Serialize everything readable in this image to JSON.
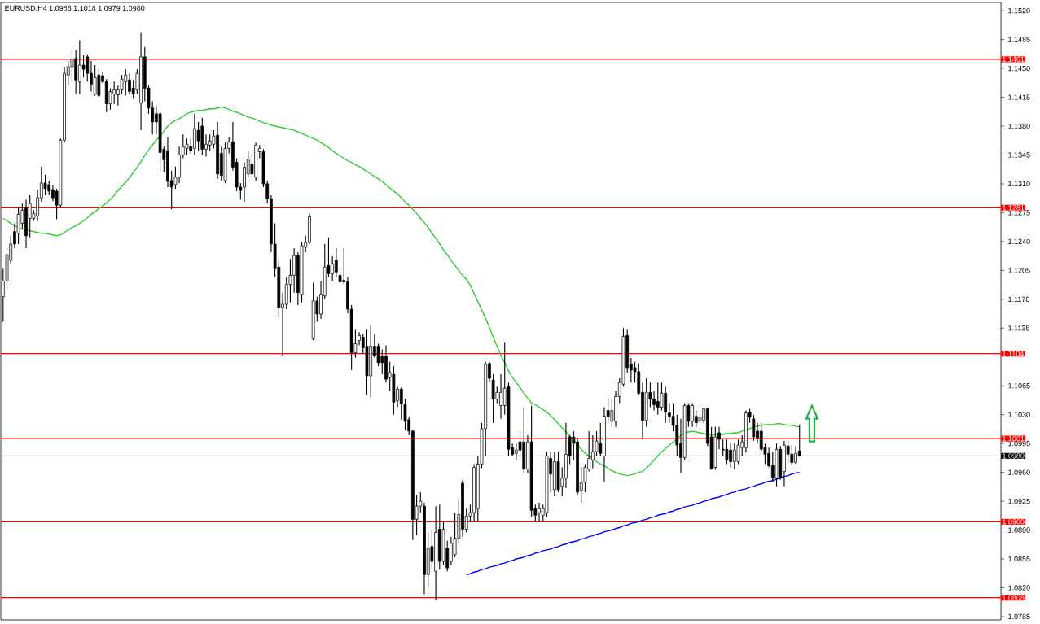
{
  "chart_data": {
    "type": "candlestick",
    "title": "EURUSD,H4 1.0986 1.1018 1.0979 1.0980",
    "categories": [
      null,
      null,
      null,
      null,
      null,
      null,
      null,
      null,
      null,
      null,
      null,
      null,
      null,
      null,
      null,
      null,
      null,
      null,
      null,
      null,
      null,
      null,
      null,
      null,
      null,
      null,
      null,
      null,
      null,
      null,
      null,
      null,
      null,
      null,
      null,
      null,
      null,
      null,
      null,
      null,
      null,
      null,
      null,
      null,
      null,
      null,
      null,
      null,
      null,
      null,
      null,
      null,
      null,
      null,
      null,
      null,
      null,
      null,
      null,
      null,
      null,
      null,
      null,
      null,
      null,
      null,
      null,
      null,
      null,
      null,
      null,
      null,
      null,
      null,
      null,
      null,
      null,
      null,
      null,
      null,
      null,
      null,
      null,
      null,
      null,
      null,
      null,
      null,
      null,
      null,
      null,
      null,
      null,
      null,
      null,
      null,
      null,
      null,
      null,
      null,
      null,
      null,
      null,
      null,
      null,
      null,
      null,
      null,
      null,
      null,
      null,
      null,
      null,
      null,
      null,
      null,
      null,
      null,
      null,
      null,
      null,
      null,
      null,
      null,
      null,
      null,
      null,
      null,
      null,
      null,
      null,
      null,
      null,
      null,
      null,
      null,
      null,
      null,
      null,
      null,
      null,
      null,
      null,
      null,
      null,
      null,
      null,
      null,
      null,
      null,
      null,
      null,
      null,
      null,
      null,
      null,
      null,
      null,
      null,
      null,
      null,
      null,
      null,
      null,
      null,
      null,
      null,
      null,
      null,
      null,
      null,
      null,
      null,
      null,
      null,
      null,
      null,
      null,
      null,
      null,
      null,
      null,
      null,
      null,
      null,
      null,
      null,
      null,
      null,
      null,
      null,
      null,
      null,
      null,
      null,
      null,
      null,
      null,
      null,
      null,
      null,
      null,
      null,
      null,
      null,
      null,
      null,
      null,
      null
    ],
    "ohlc": [
      [
        1.1173,
        1.1207,
        1.1143,
        1.1192
      ],
      [
        1.1192,
        1.1232,
        1.1183,
        1.1224
      ],
      [
        1.1217,
        1.1247,
        1.1212,
        1.1237
      ],
      [
        1.1252,
        1.1262,
        1.1232,
        1.1237
      ],
      [
        1.125,
        1.1281,
        1.1237,
        1.1273
      ],
      [
        1.1262,
        1.1286,
        1.1255,
        1.1278
      ],
      [
        1.1281,
        1.1291,
        1.1232,
        1.1247
      ],
      [
        1.1268,
        1.1296,
        1.1245,
        1.1286
      ],
      [
        1.1268,
        1.1278,
        1.1265,
        1.1274
      ],
      [
        1.1271,
        1.1303,
        1.1265,
        1.1293
      ],
      [
        1.1293,
        1.1331,
        1.1288,
        1.1311
      ],
      [
        1.1311,
        1.1321,
        1.1296,
        1.1304
      ],
      [
        1.1309,
        1.1314,
        1.1296,
        1.1301
      ],
      [
        1.1303,
        1.1308,
        1.1289,
        1.1293
      ],
      [
        1.1301,
        1.1304,
        1.1267,
        1.1284
      ],
      [
        1.1284,
        1.1365,
        1.1281,
        1.1363
      ],
      [
        1.1363,
        1.1452,
        1.136,
        1.1444
      ],
      [
        1.1442,
        1.1459,
        1.1429,
        1.1452
      ],
      [
        1.1452,
        1.1472,
        1.1434,
        1.1461
      ],
      [
        1.1462,
        1.1472,
        1.1419,
        1.1436
      ],
      [
        1.1434,
        1.1484,
        1.1419,
        1.1454
      ],
      [
        1.1454,
        1.1466,
        1.1439,
        1.1449
      ],
      [
        1.1464,
        1.1467,
        1.1434,
        1.1444
      ],
      [
        1.1444,
        1.1459,
        1.1422,
        1.1431
      ],
      [
        1.1419,
        1.1454,
        1.1417,
        1.1439
      ],
      [
        1.1442,
        1.1449,
        1.1415,
        1.1417
      ],
      [
        1.1441,
        1.1446,
        1.1432,
        1.1434
      ],
      [
        1.1434,
        1.1437,
        1.1397,
        1.1407
      ],
      [
        1.1407,
        1.1426,
        1.14,
        1.1422
      ],
      [
        1.1419,
        1.1434,
        1.1407,
        1.1424
      ],
      [
        1.1418,
        1.1429,
        1.1405,
        1.1424
      ],
      [
        1.1424,
        1.1442,
        1.1419,
        1.1437
      ],
      [
        1.1434,
        1.1449,
        1.1417,
        1.1442
      ],
      [
        1.1436,
        1.1444,
        1.1418,
        1.1422
      ],
      [
        1.1426,
        1.1436,
        1.1413,
        1.1419
      ],
      [
        1.1424,
        1.1449,
        1.1419,
        1.1444
      ],
      [
        1.1408,
        1.1494,
        1.1375,
        1.1464
      ],
      [
        1.1464,
        1.1476,
        1.141,
        1.1426
      ],
      [
        1.1426,
        1.1429,
        1.1395,
        1.1402
      ],
      [
        1.1402,
        1.141,
        1.137,
        1.1385
      ],
      [
        1.1395,
        1.1405,
        1.137,
        1.1385
      ],
      [
        1.1395,
        1.1397,
        1.1326,
        1.1348
      ],
      [
        1.1352,
        1.1355,
        1.1324,
        1.1339
      ],
      [
        1.135,
        1.1367,
        1.1306,
        1.1313
      ],
      [
        1.1314,
        1.1326,
        1.1279,
        1.1306
      ],
      [
        1.1309,
        1.1331,
        1.1304,
        1.1318
      ],
      [
        1.1318,
        1.1355,
        1.1311,
        1.1345
      ],
      [
        1.1345,
        1.137,
        1.1341,
        1.1355
      ],
      [
        1.1353,
        1.1365,
        1.1345,
        1.1358
      ],
      [
        1.1355,
        1.1365,
        1.1347,
        1.135
      ],
      [
        1.1353,
        1.1395,
        1.1345,
        1.1377
      ],
      [
        1.1375,
        1.1385,
        1.135,
        1.1362
      ],
      [
        1.138,
        1.139,
        1.1345,
        1.1352
      ],
      [
        1.1352,
        1.137,
        1.1343,
        1.1358
      ],
      [
        1.1357,
        1.137,
        1.135,
        1.1362
      ],
      [
        1.1358,
        1.1375,
        1.1353,
        1.1368
      ],
      [
        1.1369,
        1.1385,
        1.1316,
        1.1322
      ],
      [
        1.1347,
        1.1355,
        1.1314,
        1.132
      ],
      [
        1.1314,
        1.136,
        1.1311,
        1.1353
      ],
      [
        1.1353,
        1.1367,
        1.1347,
        1.1361
      ],
      [
        1.1361,
        1.1385,
        1.1326,
        1.133
      ],
      [
        1.1336,
        1.1341,
        1.1301,
        1.1306
      ],
      [
        1.1306,
        1.1311,
        1.1291,
        1.1302
      ],
      [
        1.1306,
        1.1336,
        1.1288,
        1.133
      ],
      [
        1.1322,
        1.135,
        1.1318,
        1.134
      ],
      [
        1.1334,
        1.1347,
        1.1316,
        1.1322
      ],
      [
        1.1318,
        1.136,
        1.1314,
        1.1357
      ],
      [
        1.1349,
        1.1357,
        1.1341,
        1.1353
      ],
      [
        1.1349,
        1.1352,
        1.1306,
        1.131
      ],
      [
        1.131,
        1.1314,
        1.1286,
        1.1292
      ],
      [
        1.1292,
        1.1296,
        1.1227,
        1.1237
      ],
      [
        1.1237,
        1.1262,
        1.1197,
        1.1207
      ],
      [
        1.1209,
        1.1219,
        1.1148,
        1.116
      ],
      [
        1.116,
        1.1178,
        1.1101,
        1.1164
      ],
      [
        1.1164,
        1.1197,
        1.1158,
        1.1188
      ],
      [
        1.1188,
        1.1219,
        1.1166,
        1.1199
      ],
      [
        1.1199,
        1.1232,
        1.1178,
        1.1223
      ],
      [
        1.1223,
        1.1227,
        1.1163,
        1.1178
      ],
      [
        1.1176,
        1.1239,
        1.1166,
        1.1235
      ],
      [
        1.1233,
        1.1247,
        1.1227,
        1.1239
      ],
      [
        1.1239,
        1.1274,
        1.1237,
        1.127
      ],
      [
        1.1122,
        1.119,
        1.112,
        1.1168
      ],
      [
        1.1168,
        1.1173,
        1.1143,
        1.1152
      ],
      [
        1.1152,
        1.1192,
        1.1146,
        1.1176
      ],
      [
        1.1174,
        1.1237,
        1.117,
        1.1209
      ],
      [
        1.1211,
        1.1245,
        1.1197,
        1.1201
      ],
      [
        1.1201,
        1.1222,
        1.1192,
        1.1213
      ],
      [
        1.1217,
        1.1232,
        1.1197,
        1.1203
      ],
      [
        1.1199,
        1.1207,
        1.1188,
        1.1191
      ],
      [
        1.1193,
        1.1232,
        1.1188,
        1.1191
      ],
      [
        1.1191,
        1.1197,
        1.1153,
        1.1158
      ],
      [
        1.1158,
        1.1163,
        1.1084,
        1.1105
      ],
      [
        1.1105,
        1.1133,
        1.1099,
        1.1116
      ],
      [
        1.112,
        1.113,
        1.1114,
        1.1126
      ],
      [
        1.1124,
        1.1128,
        1.1104,
        1.1111
      ],
      [
        1.1113,
        1.1133,
        1.1054,
        1.1077
      ],
      [
        1.1077,
        1.1138,
        1.1051,
        1.1113
      ],
      [
        1.1113,
        1.1128,
        1.1099,
        1.1101
      ],
      [
        1.1113,
        1.1116,
        1.1089,
        1.1093
      ],
      [
        1.1101,
        1.1109,
        1.1079,
        1.1093
      ],
      [
        1.1101,
        1.1114,
        1.1069,
        1.1073
      ],
      [
        1.1075,
        1.1094,
        1.1059,
        1.1081
      ],
      [
        1.1079,
        1.1089,
        1.103,
        1.1045
      ],
      [
        1.1047,
        1.1064,
        1.1039,
        1.1061
      ],
      [
        1.1061,
        1.1063,
        1.1024,
        1.1043
      ],
      [
        1.1043,
        1.1049,
        1.1012,
        1.1022
      ],
      [
        1.1024,
        1.1028,
        1.1005,
        1.101
      ],
      [
        1.101,
        1.1012,
        1.0878,
        1.0903
      ],
      [
        1.0903,
        1.0933,
        1.0884,
        1.0919
      ],
      [
        1.0919,
        1.0936,
        1.0911,
        1.0925
      ],
      [
        1.0919,
        1.0923,
        1.0812,
        1.0836
      ],
      [
        1.0836,
        1.0887,
        1.0822,
        1.0868
      ],
      [
        1.087,
        1.0891,
        1.0842,
        1.0852
      ],
      [
        1.084,
        1.0919,
        1.0805,
        1.0887
      ],
      [
        1.0891,
        1.0921,
        1.0842,
        1.0852
      ],
      [
        1.0852,
        1.0901,
        1.0847,
        1.0891
      ],
      [
        1.0868,
        1.0877,
        1.084,
        1.0844
      ],
      [
        1.0852,
        1.0882,
        1.0847,
        1.0874
      ],
      [
        1.086,
        1.0911,
        1.0857,
        1.088
      ],
      [
        1.088,
        1.0926,
        1.0874,
        1.0909
      ],
      [
        1.0947,
        1.0951,
        1.0882,
        1.0891
      ],
      [
        1.0891,
        1.0916,
        1.0887,
        1.0907
      ],
      [
        1.0907,
        1.0921,
        1.0901,
        1.0911
      ],
      [
        1.0911,
        1.097,
        1.0901,
        1.0966
      ],
      [
        1.0916,
        1.098,
        1.0901,
        1.097
      ],
      [
        1.097,
        1.102,
        1.0965,
        1.1013
      ],
      [
        1.1013,
        1.1094,
        1.098,
        1.1091
      ],
      [
        1.1092,
        1.1094,
        1.1069,
        1.1074
      ],
      [
        1.1072,
        1.1079,
        1.102,
        1.1049
      ],
      [
        1.1049,
        1.1064,
        1.1044,
        1.1057
      ],
      [
        1.1041,
        1.1079,
        1.1025,
        1.1057
      ],
      [
        1.1041,
        1.1118,
        1.103,
        1.1062
      ],
      [
        1.1064,
        1.1069,
        1.098,
        1.0988
      ],
      [
        1.099,
        1.0995,
        1.098,
        1.0982
      ],
      [
        1.0983,
        1.0995,
        1.0975,
        1.0987
      ],
      [
        1.0997,
        1.101,
        1.0975,
        1.0987
      ],
      [
        1.0997,
        1.1039,
        1.0959,
        1.0964
      ],
      [
        1.0964,
        1.1005,
        1.0959,
        1.0997
      ],
      [
        1.0997,
        1.1041,
        1.0906,
        1.0914
      ],
      [
        1.0916,
        1.0921,
        1.0901,
        1.0908
      ],
      [
        1.0911,
        1.0923,
        1.0901,
        1.0916
      ],
      [
        1.0908,
        1.0921,
        1.0901,
        1.0916
      ],
      [
        1.0911,
        1.0985,
        1.0906,
        1.098
      ],
      [
        1.0977,
        1.0985,
        1.0936,
        1.0958
      ],
      [
        1.0939,
        1.0985,
        1.0931,
        1.0973
      ],
      [
        1.0973,
        1.0985,
        1.0936,
        1.0939
      ],
      [
        1.0943,
        1.0966,
        1.0931,
        1.0953
      ],
      [
        1.0953,
        1.102,
        1.0941,
        1.0982
      ],
      [
        1.1003,
        1.1005,
        1.097,
        1.098
      ],
      [
        1.1003,
        1.101,
        1.0975,
        1.0995
      ],
      [
        1.0997,
        1.1002,
        1.0933,
        1.0936
      ],
      [
        1.0938,
        1.0966,
        1.0923,
        1.0948
      ],
      [
        1.0948,
        1.097,
        1.0936,
        1.0966
      ],
      [
        1.0964,
        1.101,
        1.0961,
        1.0977
      ],
      [
        1.0975,
        1.1005,
        1.0965,
        1.0985
      ],
      [
        1.0985,
        1.101,
        1.098,
        1.0998
      ],
      [
        1.0995,
        1.102,
        1.098,
        1.0983
      ],
      [
        1.098,
        1.1039,
        1.0949,
        1.1028
      ],
      [
        1.1035,
        1.1049,
        1.102,
        1.1028
      ],
      [
        1.1022,
        1.1049,
        1.1015,
        1.1035
      ],
      [
        1.1022,
        1.1059,
        1.1015,
        1.1052
      ],
      [
        1.1052,
        1.1074,
        1.1044,
        1.1069
      ],
      [
        1.1067,
        1.1135,
        1.1064,
        1.1125
      ],
      [
        1.1126,
        1.1133,
        1.1081,
        1.1087
      ],
      [
        1.1091,
        1.1099,
        1.1069,
        1.1084
      ],
      [
        1.1087,
        1.1094,
        1.1069,
        1.1082
      ],
      [
        1.1082,
        1.1092,
        1.1054,
        1.1056
      ],
      [
        1.1057,
        1.1069,
        1.1,
        1.1023
      ],
      [
        1.1023,
        1.1074,
        1.1015,
        1.1057
      ],
      [
        1.1057,
        1.1069,
        1.1039,
        1.1049
      ],
      [
        1.1049,
        1.1059,
        1.1035,
        1.1042
      ],
      [
        1.1046,
        1.1069,
        1.103,
        1.1039
      ],
      [
        1.1039,
        1.1069,
        1.1035,
        1.1056
      ],
      [
        1.1056,
        1.1064,
        1.102,
        1.1033
      ],
      [
        1.1032,
        1.1044,
        1.102,
        1.1028
      ],
      [
        1.1028,
        1.1044,
        1.101,
        1.1017
      ],
      [
        1.1017,
        1.103,
        1.098,
        1.0993
      ],
      [
        1.0995,
        1.1025,
        1.0959,
        1.0978
      ],
      [
        1.0978,
        1.1044,
        1.0975,
        1.1041
      ],
      [
        1.1041,
        1.1044,
        1.1015,
        1.1022
      ],
      [
        1.1022,
        1.1044,
        1.1015,
        1.1041
      ],
      [
        1.1028,
        1.1035,
        1.1015,
        1.102
      ],
      [
        1.1022,
        1.1035,
        1.1018,
        1.1027
      ],
      [
        1.1023,
        1.1038,
        1.102,
        1.1037
      ],
      [
        1.1037,
        1.1038,
        1.0992,
        1.0995
      ],
      [
        1.1003,
        1.1015,
        1.0963,
        1.0964
      ],
      [
        1.0966,
        1.1015,
        1.0963,
        1.1003
      ],
      [
        1.1008,
        1.1015,
        1.0988,
        1.1
      ],
      [
        1.0988,
        1.1,
        1.098,
        1.0987
      ],
      [
        1.0988,
        1.1,
        1.097,
        1.0975
      ],
      [
        1.0987,
        1.0995,
        1.0966,
        1.0973
      ],
      [
        1.0973,
        1.0995,
        1.0964,
        1.0987
      ],
      [
        1.0973,
        1.1,
        1.097,
        1.0993
      ],
      [
        1.099,
        1.1005,
        1.098,
        1.0997
      ],
      [
        1.099,
        1.1035,
        1.0984,
        1.1032
      ],
      [
        1.1033,
        1.1037,
        1.102,
        1.1027
      ],
      [
        1.1025,
        1.103,
        1.0998,
        1.1003
      ],
      [
        1.101,
        1.102,
        1.0995,
        1.1002
      ],
      [
        1.101,
        1.102,
        1.0985,
        1.0988
      ],
      [
        1.099,
        1.0995,
        1.097,
        1.0982
      ],
      [
        1.0983,
        1.099,
        1.0966,
        1.0968
      ],
      [
        1.0968,
        1.0985,
        1.0949,
        1.0953
      ],
      [
        1.0953,
        1.0995,
        1.0943,
        1.0988
      ],
      [
        1.0988,
        1.0992,
        1.0951,
        1.0953
      ],
      [
        1.0961,
        1.0998,
        1.0943,
        1.0993
      ],
      [
        1.0992,
        1.0998,
        1.0972,
        1.0982
      ],
      [
        1.0982,
        1.0993,
        1.0968,
        1.0972
      ],
      [
        1.0972,
        1.0992,
        1.097,
        1.0983
      ],
      [
        1.0986,
        1.1018,
        1.0979,
        1.098
      ]
    ],
    "series": [
      {
        "type": "line",
        "color": "#32cd32",
        "values": [
          1.1268,
          1.1265,
          1.1262,
          1.1259,
          1.1257,
          1.1255,
          1.1254,
          1.1253,
          1.1252,
          1.1251,
          1.125,
          1.125,
          1.1249,
          1.1248,
          1.1247,
          1.1248,
          1.1251,
          1.1254,
          1.1257,
          1.1259,
          1.1262,
          1.1265,
          1.1269,
          1.1273,
          1.1276,
          1.128,
          1.1283,
          1.1287,
          1.1291,
          1.1296,
          1.1302,
          1.1307,
          1.1312,
          1.1317,
          1.1324,
          1.133,
          1.1337,
          1.1344,
          1.1351,
          1.1357,
          1.1363,
          1.1368,
          1.1374,
          1.138,
          1.1384,
          1.1387,
          1.1389,
          1.1392,
          1.1395,
          1.1397,
          1.1398,
          1.1399,
          1.1399,
          1.14,
          1.1401,
          1.1401,
          1.1402,
          1.1403,
          1.1402,
          1.14,
          1.1398,
          1.1397,
          1.1395,
          1.1393,
          1.1391,
          1.139,
          1.1388,
          1.1386,
          1.1384,
          1.1383,
          1.1381,
          1.138,
          1.1379,
          1.1378,
          1.1377,
          1.1376,
          1.1375,
          1.1373,
          1.1371,
          1.1369,
          1.1367,
          1.1365,
          1.1363,
          1.136,
          1.1357,
          1.1354,
          1.135,
          1.1347,
          1.1344,
          1.1341,
          1.1338,
          1.1336,
          1.1333,
          1.1331,
          1.1328,
          1.1325,
          1.1322,
          1.1319,
          1.1316,
          1.1313,
          1.1309,
          1.1305,
          1.1301,
          1.1298,
          1.1293,
          1.1288,
          1.1284,
          1.1279,
          1.1274,
          1.1268,
          1.1263,
          1.1257,
          1.125,
          1.1244,
          1.1237,
          1.123,
          1.1224,
          1.1217,
          1.1211,
          1.1205,
          1.1199,
          1.1194,
          1.1187,
          1.1177,
          1.1167,
          1.1157,
          1.1147,
          1.1136,
          1.1124,
          1.1113,
          1.1102,
          1.1093,
          1.1083,
          1.1075,
          1.1069,
          1.1063,
          1.1056,
          1.105,
          1.1044,
          1.1042,
          1.1039,
          1.1036,
          1.1033,
          1.1029,
          1.1024,
          1.1019,
          1.1014,
          1.1009,
          1.1004,
          1.0999,
          1.0994,
          1.0988,
          1.0983,
          1.098,
          1.0977,
          1.0973,
          1.097,
          1.0968,
          1.0965,
          1.0962,
          1.096,
          1.0958,
          1.0957,
          1.0956,
          1.0957,
          1.0958,
          1.096,
          1.0961,
          1.0965,
          1.097,
          1.0975,
          1.098,
          1.0985,
          1.0989,
          1.0993,
          1.0997,
          1.1001,
          1.1005,
          1.1008,
          1.1009,
          1.101,
          1.1009,
          1.1008,
          1.1007,
          1.1006,
          1.1005,
          1.1006,
          1.1006,
          1.1006,
          1.1007,
          1.1007,
          1.1008,
          1.1008,
          1.101,
          1.1012,
          1.1013,
          1.1015,
          1.1016,
          1.1017,
          1.1018,
          1.1018,
          1.1018,
          1.1019,
          1.1019,
          1.1018,
          1.1017,
          1.1017,
          1.1016,
          1.1015
        ]
      },
      {
        "type": "line",
        "color": "#0000ff",
        "values": [
          null,
          null,
          null,
          null,
          null,
          null,
          null,
          null,
          null,
          null,
          null,
          null,
          null,
          null,
          null,
          null,
          null,
          null,
          null,
          null,
          null,
          null,
          null,
          null,
          null,
          null,
          null,
          null,
          null,
          null,
          null,
          null,
          null,
          null,
          null,
          null,
          null,
          null,
          null,
          null,
          null,
          null,
          null,
          null,
          null,
          null,
          null,
          null,
          null,
          null,
          null,
          null,
          null,
          null,
          null,
          null,
          null,
          null,
          null,
          null,
          null,
          null,
          null,
          null,
          null,
          null,
          null,
          null,
          null,
          null,
          null,
          null,
          null,
          null,
          null,
          null,
          null,
          null,
          null,
          null,
          null,
          null,
          null,
          null,
          null,
          null,
          null,
          null,
          null,
          null,
          null,
          null,
          null,
          null,
          null,
          null,
          null,
          null,
          null,
          null,
          null,
          null,
          null,
          null,
          null,
          null,
          null,
          null,
          null,
          null,
          null,
          null,
          null,
          null,
          null,
          null,
          null,
          null,
          null,
          null,
          null,
          1.0836,
          1.0837,
          1.0839,
          1.084,
          1.0842,
          1.0843,
          1.0845,
          1.0846,
          1.0847,
          1.0849,
          1.085,
          1.0852,
          1.0853,
          1.0855,
          1.0856,
          1.0857,
          1.0859,
          1.086,
          1.0862,
          1.0863,
          1.0865,
          1.0866,
          1.0867,
          1.0869,
          1.087,
          1.0872,
          1.0873,
          1.0875,
          1.0876,
          1.0877,
          1.0879,
          1.088,
          1.0882,
          1.0883,
          1.0885,
          1.0886,
          1.0888,
          1.0889,
          1.089,
          1.0892,
          1.0893,
          1.0895,
          1.0896,
          1.0898,
          1.0899,
          1.09,
          1.0902,
          1.0903,
          1.0905,
          1.0906,
          1.0908,
          1.0909,
          1.091,
          1.0912,
          1.0913,
          1.0915,
          1.0916,
          1.0918,
          1.0919,
          1.092,
          1.0922,
          1.0923,
          1.0925,
          1.0926,
          1.0928,
          1.0929,
          1.093,
          1.0932,
          1.0933,
          1.0935,
          1.0936,
          1.0938,
          1.0939,
          1.094,
          1.0942,
          1.0943,
          1.0945,
          1.0946,
          1.0948,
          1.0949,
          1.095,
          1.0952,
          1.0953,
          1.0955,
          1.0956,
          1.0958,
          1.0959,
          1.096
        ]
      }
    ],
    "ylim": [
      1.0781,
      1.153
    ],
    "yticks": [
      {
        "value": 1.152,
        "label": "1.1520"
      },
      {
        "value": 1.1485,
        "label": "1.1485"
      },
      {
        "value": 1.145,
        "label": "1.1450"
      },
      {
        "value": 1.1415,
        "label": "1.1415"
      },
      {
        "value": 1.138,
        "label": "1.1380"
      },
      {
        "value": 1.1345,
        "label": "1.1345"
      },
      {
        "value": 1.131,
        "label": "1.1310"
      },
      {
        "value": 1.1275,
        "label": "1.1275"
      },
      {
        "value": 1.124,
        "label": "1.1240"
      },
      {
        "value": 1.1205,
        "label": "1.1205"
      },
      {
        "value": 1.117,
        "label": "1.1170"
      },
      {
        "value": 1.1135,
        "label": "1.1135"
      },
      {
        "value": 1.1065,
        "label": "1.1065"
      },
      {
        "value": 1.103,
        "label": "1.1030"
      },
      {
        "value": 1.0995,
        "label": "1.0995"
      },
      {
        "value": 1.096,
        "label": "1.0960"
      },
      {
        "value": 1.0925,
        "label": "1.0925"
      },
      {
        "value": 1.089,
        "label": "1.0890"
      },
      {
        "value": 1.0855,
        "label": "1.0855"
      },
      {
        "value": 1.082,
        "label": "1.0820"
      },
      {
        "value": 1.0785,
        "label": "1.0785"
      }
    ],
    "ref_lines": [
      {
        "axis": "y",
        "value": 1.1461,
        "label": "1.1461",
        "color": "#ff0000"
      },
      {
        "axis": "y",
        "value": 1.1281,
        "label": "1.1281",
        "color": "#ff0000"
      },
      {
        "axis": "y",
        "value": 1.1104,
        "label": "1.1104",
        "color": "#ff0000"
      },
      {
        "axis": "y",
        "value": 1.1001,
        "label": "1.1001",
        "color": "#ff0000"
      },
      {
        "axis": "y",
        "value": 1.09,
        "label": "1.0900",
        "color": "#ff0000"
      },
      {
        "axis": "y",
        "value": 1.0808,
        "label": "1.0808",
        "color": "#ff0000"
      },
      {
        "axis": "y",
        "value": 1.098,
        "label": "1.0980",
        "color": "#c0c0c0"
      }
    ]
  }
}
